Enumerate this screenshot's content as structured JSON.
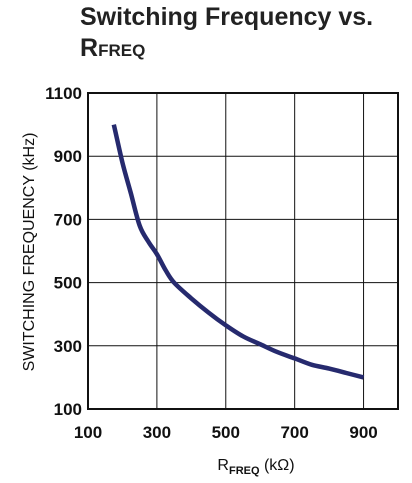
{
  "chart_data": {
    "type": "line",
    "title_line1": "Switching Frequency vs.",
    "title_main": "R",
    "title_sub": "FREQ",
    "xlabel_main": "R",
    "xlabel_sub": "FREQ",
    "xlabel_unit": " (kΩ)",
    "ylabel": "SWITCHING FREQUENCY (kHz)",
    "xlim": [
      100,
      1000
    ],
    "ylim": [
      100,
      1100
    ],
    "xticks": [
      100,
      300,
      500,
      700,
      900
    ],
    "yticks": [
      100,
      300,
      500,
      700,
      900,
      1100
    ],
    "xgrid": [
      100,
      300,
      500,
      700,
      900,
      1000
    ],
    "ygrid": [
      100,
      300,
      500,
      700,
      900,
      1100
    ],
    "grid": true,
    "line_color": "#262a6e",
    "series": [
      {
        "x": [
          175,
          200,
          225,
          250,
          275,
          300,
          325,
          350,
          400,
          450,
          500,
          550,
          600,
          650,
          700,
          750,
          800,
          850,
          900
        ],
        "y": [
          1000,
          880,
          780,
          680,
          630,
          590,
          540,
          500,
          450,
          405,
          365,
          330,
          305,
          280,
          260,
          240,
          228,
          214,
          200
        ]
      }
    ]
  }
}
